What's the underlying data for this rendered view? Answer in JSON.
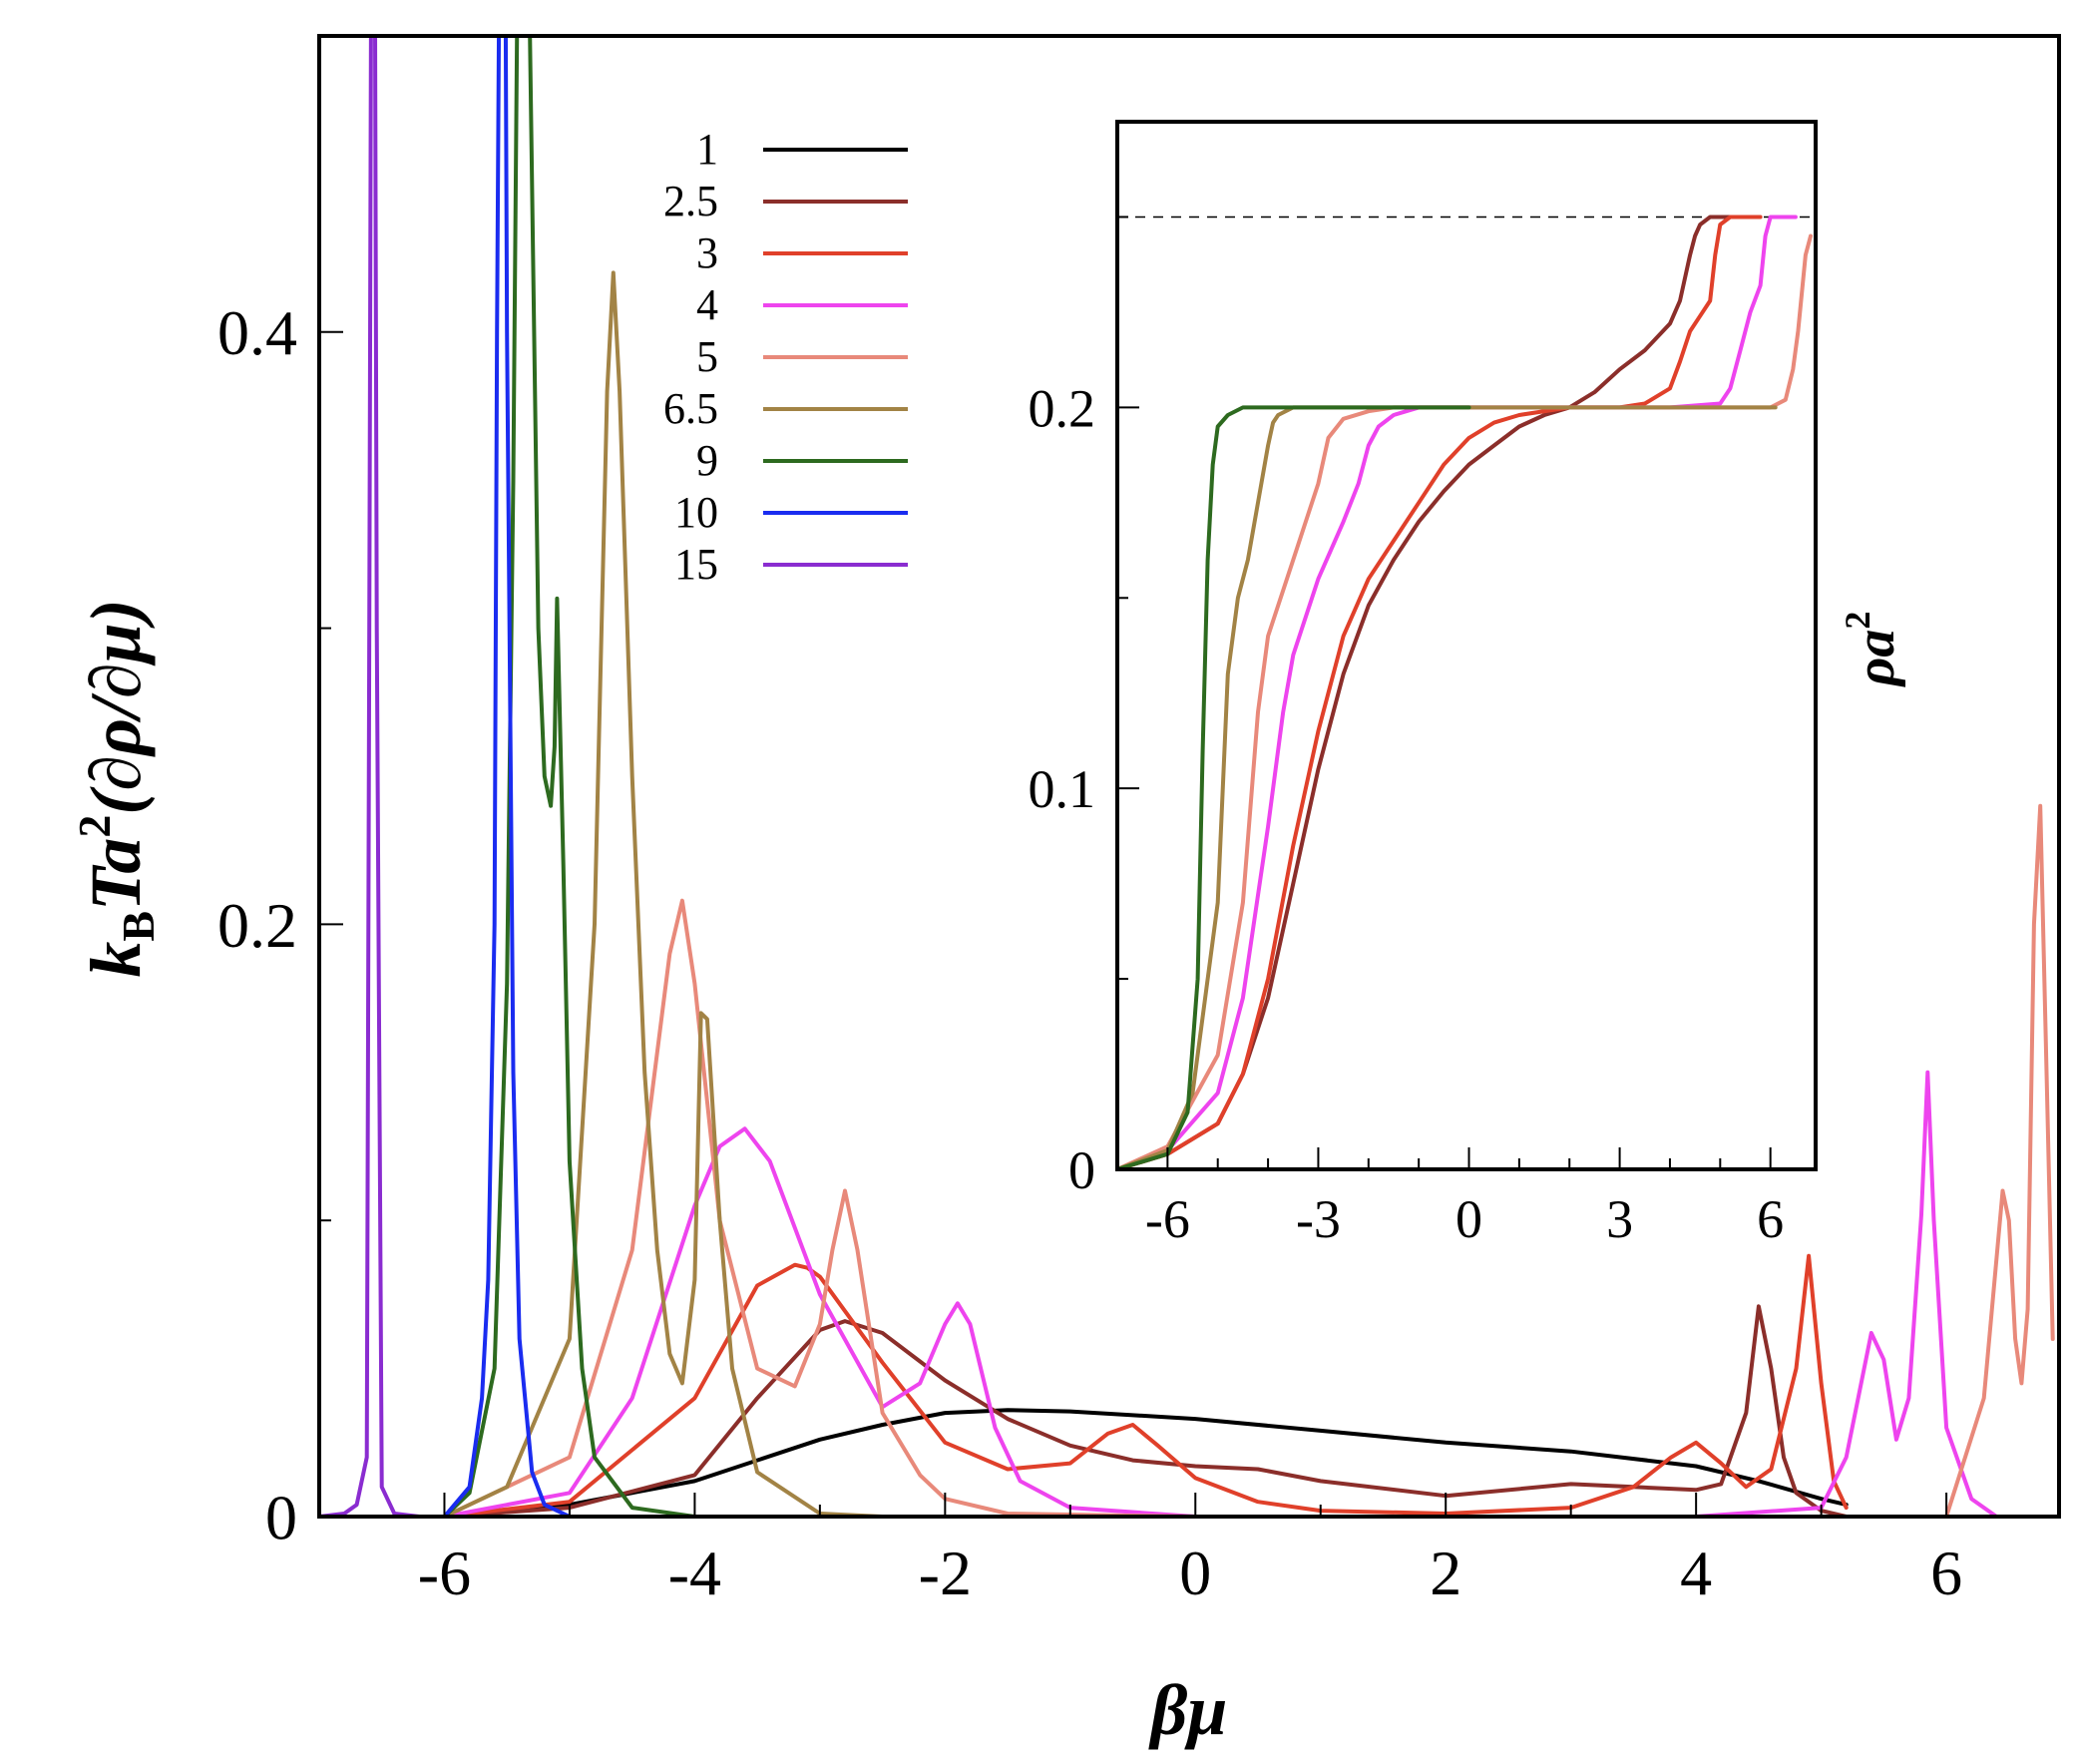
{
  "chart_data": [
    {
      "id": "main",
      "type": "line",
      "title": "",
      "xlabel": "βμ",
      "ylabel_parts": {
        "k": "k",
        "sub": "B",
        "T": "Ta",
        "sup": "2",
        "rest": "(∂ρ/∂μ)"
      },
      "xlim": [
        -7,
        6.9
      ],
      "ylim": [
        0,
        0.5
      ],
      "xticks": [
        -6,
        -4,
        -2,
        0,
        2,
        4,
        6
      ],
      "xtick_labels": [
        "-6",
        "-4",
        "-2",
        "0",
        "2",
        "4",
        "6"
      ],
      "yticks": [
        0,
        0.2,
        0.4
      ],
      "ytick_labels": [
        "0",
        "0.2",
        "0.4"
      ],
      "legend_position": "top-center",
      "series": [
        {
          "name": "1",
          "color": "#000000",
          "x": [
            -6.0,
            -5.0,
            -4.0,
            -3.0,
            -2.5,
            -2.0,
            -1.5,
            -1.0,
            0.0,
            1.0,
            2.0,
            3.0,
            4.0,
            4.5,
            5.0,
            5.2
          ],
          "y": [
            0.0,
            0.004,
            0.012,
            0.026,
            0.031,
            0.035,
            0.036,
            0.0355,
            0.033,
            0.029,
            0.025,
            0.022,
            0.017,
            0.012,
            0.006,
            0.004
          ]
        },
        {
          "name": "2.5",
          "color": "#8b2e2a",
          "x": [
            -6.0,
            -5.0,
            -4.0,
            -3.5,
            -3.0,
            -2.8,
            -2.5,
            -2.0,
            -1.5,
            -1.0,
            -0.5,
            0.0,
            0.5,
            1.0,
            2.0,
            3.0,
            3.5,
            4.0,
            4.2,
            4.4,
            4.5,
            4.6,
            4.7,
            4.8,
            5.0,
            5.2
          ],
          "y": [
            0.0,
            0.003,
            0.014,
            0.04,
            0.063,
            0.066,
            0.062,
            0.046,
            0.033,
            0.024,
            0.019,
            0.017,
            0.016,
            0.012,
            0.007,
            0.011,
            0.01,
            0.009,
            0.011,
            0.035,
            0.071,
            0.05,
            0.02,
            0.008,
            0.002,
            0.0
          ]
        },
        {
          "name": "3",
          "color": "#e0402a",
          "x": [
            -6.0,
            -5.0,
            -4.0,
            -3.5,
            -3.2,
            -3.1,
            -3.0,
            -2.5,
            -2.0,
            -1.5,
            -1.0,
            -0.7,
            -0.5,
            -0.3,
            0.0,
            0.5,
            1.0,
            2.0,
            3.0,
            3.5,
            3.8,
            4.0,
            4.2,
            4.4,
            4.6,
            4.8,
            4.9,
            5.0,
            5.1,
            5.2
          ],
          "y": [
            0.0,
            0.005,
            0.04,
            0.078,
            0.085,
            0.084,
            0.081,
            0.052,
            0.025,
            0.016,
            0.018,
            0.028,
            0.031,
            0.024,
            0.013,
            0.005,
            0.002,
            0.001,
            0.003,
            0.01,
            0.02,
            0.025,
            0.018,
            0.01,
            0.016,
            0.05,
            0.088,
            0.045,
            0.012,
            0.003
          ]
        },
        {
          "name": "4",
          "color": "#ee44ee",
          "x": [
            -6.0,
            -5.0,
            -4.5,
            -4.0,
            -3.8,
            -3.6,
            -3.4,
            -3.0,
            -2.5,
            -2.2,
            -2.0,
            -1.9,
            -1.8,
            -1.6,
            -1.4,
            -1.0,
            0.0,
            2.0,
            4.0,
            5.0,
            5.2,
            5.4,
            5.5,
            5.6,
            5.7,
            5.8,
            5.85,
            5.9,
            6.0,
            6.2,
            6.4,
            6.5
          ],
          "y": [
            0.0,
            0.008,
            0.04,
            0.105,
            0.125,
            0.131,
            0.12,
            0.075,
            0.037,
            0.045,
            0.065,
            0.072,
            0.065,
            0.03,
            0.012,
            0.003,
            0.0,
            0.0,
            0.0,
            0.003,
            0.02,
            0.062,
            0.053,
            0.026,
            0.04,
            0.102,
            0.15,
            0.1,
            0.03,
            0.006,
            0.0,
            0.0
          ]
        },
        {
          "name": "5",
          "color": "#e8897a",
          "x": [
            -6.0,
            -5.0,
            -4.5,
            -4.2,
            -4.1,
            -4.0,
            -3.8,
            -3.5,
            -3.2,
            -3.0,
            -2.9,
            -2.8,
            -2.7,
            -2.5,
            -2.2,
            -2.0,
            -1.5,
            0.0,
            6.0,
            6.3,
            6.45,
            6.5,
            6.55,
            6.6,
            6.65,
            6.7,
            6.75,
            6.8,
            6.85
          ],
          "y": [
            0.0,
            0.02,
            0.09,
            0.19,
            0.208,
            0.18,
            0.1,
            0.05,
            0.044,
            0.065,
            0.09,
            0.11,
            0.09,
            0.035,
            0.014,
            0.006,
            0.001,
            0.0,
            0.0,
            0.04,
            0.11,
            0.1,
            0.06,
            0.045,
            0.07,
            0.2,
            0.24,
            0.15,
            0.06
          ]
        },
        {
          "name": "6.5",
          "color": "#a28345",
          "x": [
            -6.0,
            -5.5,
            -5.0,
            -4.8,
            -4.7,
            -4.65,
            -4.6,
            -4.5,
            -4.4,
            -4.3,
            -4.2,
            -4.1,
            -4.0,
            -3.95,
            -3.9,
            -3.8,
            -3.7,
            -3.5,
            -3.0,
            -2.5
          ],
          "y": [
            0.0,
            0.01,
            0.06,
            0.2,
            0.38,
            0.42,
            0.38,
            0.25,
            0.15,
            0.09,
            0.055,
            0.045,
            0.08,
            0.17,
            0.168,
            0.1,
            0.05,
            0.015,
            0.001,
            0.0
          ]
        },
        {
          "name": "9",
          "color": "#2d6a1f",
          "x": [
            -6.0,
            -5.8,
            -5.6,
            -5.5,
            -5.45,
            -5.4,
            -5.35,
            -5.3,
            -5.25,
            -5.2,
            -5.15,
            -5.12,
            -5.1,
            -5.05,
            -5.0,
            -4.9,
            -4.8,
            -4.5,
            -4.0
          ],
          "y": [
            0.0,
            0.008,
            0.05,
            0.18,
            0.35,
            0.6,
            0.6,
            0.45,
            0.3,
            0.25,
            0.24,
            0.26,
            0.31,
            0.22,
            0.12,
            0.05,
            0.02,
            0.003,
            0.0
          ]
        },
        {
          "name": "10",
          "color": "#1a2cf0",
          "x": [
            -6.0,
            -5.8,
            -5.7,
            -5.65,
            -5.6,
            -5.58,
            -5.55,
            -5.52,
            -5.5,
            -5.45,
            -5.4,
            -5.3,
            -5.2,
            -5.0
          ],
          "y": [
            0.0,
            0.01,
            0.04,
            0.08,
            0.2,
            0.4,
            0.6,
            0.6,
            0.4,
            0.15,
            0.06,
            0.015,
            0.004,
            0.0
          ]
        },
        {
          "name": "15",
          "color": "#8a2cd0",
          "x": [
            -7.0,
            -6.8,
            -6.7,
            -6.62,
            -6.6,
            -6.58,
            -6.56,
            -6.54,
            -6.5,
            -6.4,
            -6.2
          ],
          "y": [
            0.0,
            0.001,
            0.004,
            0.02,
            0.3,
            0.6,
            0.6,
            0.3,
            0.01,
            0.001,
            0.0
          ]
        }
      ]
    },
    {
      "id": "inset",
      "type": "line",
      "title": "",
      "xlabel": "",
      "ylabel_parts": {
        "rho": "ρa",
        "sup": "2"
      },
      "xlim": [
        -7,
        6.9
      ],
      "ylim": [
        0,
        0.275
      ],
      "xticks": [
        -6,
        -3,
        0,
        3,
        6
      ],
      "xtick_labels": [
        "-6",
        "-3",
        "0",
        "3",
        "6"
      ],
      "yticks": [
        0,
        0.1,
        0.2
      ],
      "ytick_labels": [
        "0",
        "0.1",
        "0.2"
      ],
      "reference_line": {
        "y": 0.25,
        "style": "dashed"
      },
      "series": [
        {
          "name": "2.5",
          "color": "#8b2e2a",
          "x": [
            -7,
            -6,
            -5,
            -4.5,
            -4,
            -3.5,
            -3,
            -2.5,
            -2,
            -1.5,
            -1,
            -0.5,
            0,
            0.5,
            1,
            1.5,
            2,
            2.5,
            3,
            3.5,
            4,
            4.2,
            4.4,
            4.5,
            4.6,
            4.8,
            5.2
          ],
          "y": [
            0.0,
            0.004,
            0.012,
            0.025,
            0.045,
            0.075,
            0.105,
            0.13,
            0.148,
            0.16,
            0.17,
            0.178,
            0.185,
            0.19,
            0.195,
            0.198,
            0.2,
            0.204,
            0.21,
            0.215,
            0.222,
            0.228,
            0.24,
            0.245,
            0.248,
            0.25,
            0.25
          ]
        },
        {
          "name": "3",
          "color": "#e0402a",
          "x": [
            -7,
            -6,
            -5,
            -4.5,
            -4,
            -3.5,
            -3,
            -2.5,
            -2,
            -1.5,
            -1,
            -0.5,
            0,
            0.5,
            1,
            2,
            3,
            3.5,
            4,
            4.2,
            4.4,
            4.6,
            4.8,
            4.9,
            5.0,
            5.2,
            5.8
          ],
          "y": [
            0.0,
            0.004,
            0.012,
            0.025,
            0.05,
            0.085,
            0.115,
            0.14,
            0.155,
            0.165,
            0.175,
            0.185,
            0.192,
            0.196,
            0.198,
            0.2,
            0.2,
            0.201,
            0.205,
            0.212,
            0.22,
            0.224,
            0.228,
            0.24,
            0.248,
            0.25,
            0.25
          ]
        },
        {
          "name": "4",
          "color": "#ee44ee",
          "x": [
            -7,
            -6,
            -5,
            -4.5,
            -4,
            -3.7,
            -3.5,
            -3,
            -2.5,
            -2.2,
            -2,
            -1.8,
            -1.5,
            -1,
            0,
            2,
            4,
            5,
            5.2,
            5.4,
            5.6,
            5.8,
            5.9,
            6.0,
            6.5
          ],
          "y": [
            0.0,
            0.005,
            0.02,
            0.045,
            0.09,
            0.12,
            0.135,
            0.155,
            0.17,
            0.18,
            0.19,
            0.195,
            0.198,
            0.2,
            0.2,
            0.2,
            0.2,
            0.201,
            0.205,
            0.215,
            0.225,
            0.232,
            0.245,
            0.25,
            0.25
          ]
        },
        {
          "name": "5",
          "color": "#e8897a",
          "x": [
            -7,
            -6,
            -5,
            -4.5,
            -4.2,
            -4,
            -3.5,
            -3,
            -2.8,
            -2.5,
            -2,
            -1.5,
            0,
            3,
            6,
            6.3,
            6.45,
            6.55,
            6.7,
            6.8
          ],
          "y": [
            0.0,
            0.006,
            0.03,
            0.07,
            0.12,
            0.14,
            0.16,
            0.18,
            0.192,
            0.197,
            0.199,
            0.2,
            0.2,
            0.2,
            0.2,
            0.202,
            0.21,
            0.22,
            0.24,
            0.245
          ]
        },
        {
          "name": "6.5",
          "color": "#a28345",
          "x": [
            -7,
            -6,
            -5.5,
            -5,
            -4.8,
            -4.6,
            -4.4,
            -4.2,
            -4,
            -3.9,
            -3.8,
            -3.5,
            -3,
            0,
            3,
            6,
            6.1
          ],
          "y": [
            0.0,
            0.005,
            0.02,
            0.07,
            0.13,
            0.15,
            0.16,
            0.175,
            0.19,
            0.196,
            0.198,
            0.2,
            0.2,
            0.2,
            0.2,
            0.2,
            0.2
          ]
        },
        {
          "name": "9",
          "color": "#2d6a1f",
          "x": [
            -7,
            -6,
            -5.6,
            -5.4,
            -5.3,
            -5.2,
            -5.1,
            -5.0,
            -4.8,
            -4.5,
            0
          ],
          "y": [
            0.0,
            0.004,
            0.015,
            0.05,
            0.11,
            0.16,
            0.185,
            0.195,
            0.198,
            0.2,
            0.2
          ]
        }
      ]
    }
  ],
  "legend": {
    "labels": [
      "1",
      "2.5",
      "3",
      "4",
      "5",
      "6.5",
      "9",
      "10",
      "15"
    ],
    "colors": [
      "#000000",
      "#8b2e2a",
      "#e0402a",
      "#ee44ee",
      "#e8897a",
      "#a28345",
      "#2d6a1f",
      "#1a2cf0",
      "#8a2cd0"
    ]
  }
}
